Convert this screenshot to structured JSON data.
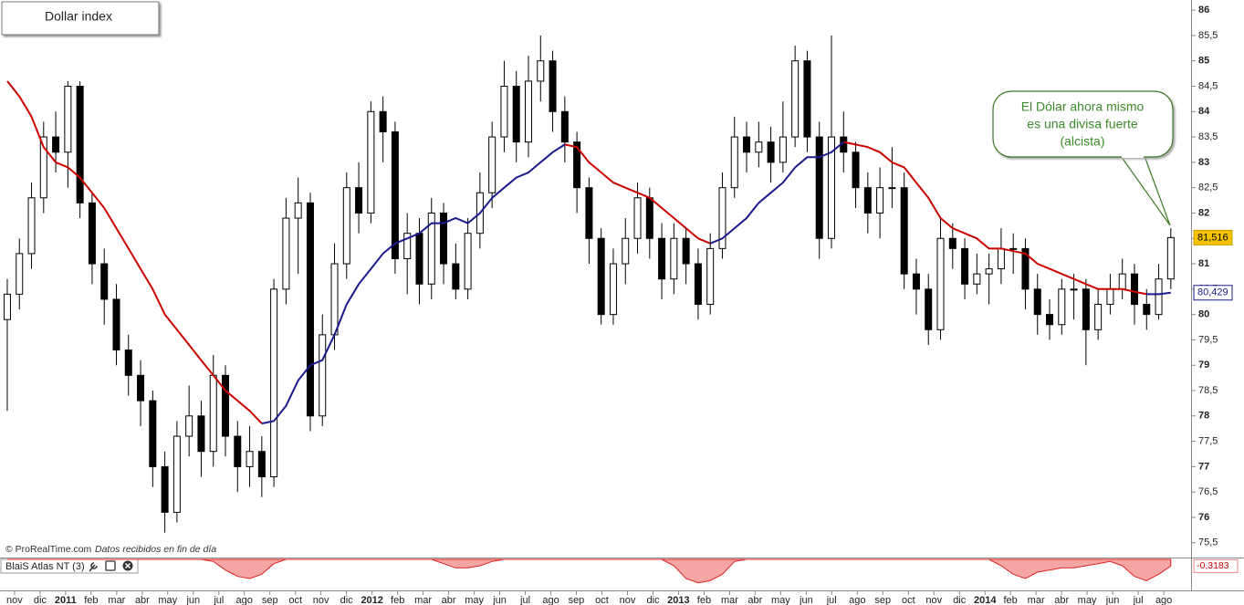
{
  "chart_data": {
    "type": "candlestick",
    "title": "Dollar index",
    "annotation": [
      "El Dólar ahora mismo",
      "es una divisa fuerte",
      "(alcista)"
    ],
    "source": "© ProRealTime.com",
    "source_note": "Datos recibidos en fin de día",
    "up_color": "#ffffff",
    "down_color": "#000000",
    "xlim": [
      -0.6,
      97.67
    ],
    "ylim": [
      75.28,
      86.2
    ],
    "yticks": [
      {
        "value": 75.5,
        "label": "75,5"
      },
      76,
      {
        "value": 76.5,
        "label": "76,5"
      },
      77,
      {
        "value": 77.5,
        "label": "77,5"
      },
      78,
      {
        "value": 78.5,
        "label": "78,5"
      },
      79,
      {
        "value": 79.5,
        "label": "79,5"
      },
      80,
      {
        "value": 80.5,
        "label": "80,5"
      },
      81,
      {
        "value": 81.5,
        "label": "81,5"
      },
      82,
      {
        "value": 82.5,
        "label": "82,5"
      },
      83,
      {
        "value": 83.5,
        "label": "83,5"
      },
      84,
      {
        "value": 84.5,
        "label": "84,5"
      },
      85,
      {
        "value": 85.5,
        "label": "85,5"
      },
      86
    ],
    "xticks": [
      {
        "value": 0.6,
        "label": "nov"
      },
      {
        "value": 2.71,
        "label": "dic"
      },
      {
        "value": 4.81,
        "label": "2011"
      },
      {
        "value": 6.92,
        "label": "feb"
      },
      {
        "value": 9.03,
        "label": "mar"
      },
      {
        "value": 11.14,
        "label": "abr"
      },
      {
        "value": 13.24,
        "label": "may"
      },
      {
        "value": 15.35,
        "label": "jun"
      },
      {
        "value": 17.46,
        "label": "jul"
      },
      {
        "value": 19.56,
        "label": "ago"
      },
      {
        "value": 21.67,
        "label": "sep"
      },
      {
        "value": 23.78,
        "label": "oct"
      },
      {
        "value": 25.88,
        "label": "nov"
      },
      {
        "value": 27.99,
        "label": "dic"
      },
      {
        "value": 30.1,
        "label": "2012"
      },
      {
        "value": 32.21,
        "label": "feb"
      },
      {
        "value": 34.31,
        "label": "mar"
      },
      {
        "value": 36.42,
        "label": "abr"
      },
      {
        "value": 38.53,
        "label": "may"
      },
      {
        "value": 40.63,
        "label": "jun"
      },
      {
        "value": 42.74,
        "label": "jul"
      },
      {
        "value": 44.85,
        "label": "ago"
      },
      {
        "value": 46.95,
        "label": "sep"
      },
      {
        "value": 49.06,
        "label": "oct"
      },
      {
        "value": 51.17,
        "label": "nov"
      },
      {
        "value": 53.28,
        "label": "dic"
      },
      {
        "value": 55.38,
        "label": "2013"
      },
      {
        "value": 57.49,
        "label": "feb"
      },
      {
        "value": 59.6,
        "label": "mar"
      },
      {
        "value": 61.7,
        "label": "abr"
      },
      {
        "value": 63.81,
        "label": "may"
      },
      {
        "value": 65.92,
        "label": "jun"
      },
      {
        "value": 68.02,
        "label": "jul"
      },
      {
        "value": 70.13,
        "label": "ago"
      },
      {
        "value": 72.24,
        "label": "sep"
      },
      {
        "value": 74.35,
        "label": "oct"
      },
      {
        "value": 76.45,
        "label": "nov"
      },
      {
        "value": 78.56,
        "label": "dic"
      },
      {
        "value": 80.67,
        "label": "2014"
      },
      {
        "value": 82.77,
        "label": "feb"
      },
      {
        "value": 84.88,
        "label": "mar"
      },
      {
        "value": 86.99,
        "label": "abr"
      },
      {
        "value": 89.09,
        "label": "may"
      },
      {
        "value": 91.2,
        "label": "jun"
      },
      {
        "value": 93.31,
        "label": "jul"
      },
      {
        "value": 95.42,
        "label": "ago"
      }
    ],
    "candles": {
      "open": [
        79.9,
        80.4,
        81.2,
        82.3,
        83.5,
        83.2,
        84.5,
        82.2,
        81.0,
        80.3,
        79.3,
        78.8,
        78.3,
        77.0,
        76.1,
        77.6,
        78.0,
        77.3,
        78.8,
        77.6,
        77.0,
        77.3,
        76.8,
        80.5,
        81.9,
        82.2,
        78.0,
        79.6,
        81.0,
        82.5,
        82.0,
        84.0,
        83.6,
        81.1,
        81.6,
        80.6,
        82.0,
        81.0,
        80.5,
        81.6,
        82.4,
        83.5,
        84.5,
        83.4,
        84.6,
        85.0,
        84.0,
        83.4,
        82.5,
        81.5,
        80.0,
        81.0,
        81.5,
        82.3,
        81.5,
        80.7,
        81.5,
        81.0,
        80.2,
        81.3,
        82.5,
        83.5,
        83.2,
        83.4,
        83.0,
        83.5,
        85.0,
        83.5,
        81.5,
        83.5,
        83.2,
        82.5,
        82.0,
        82.5,
        82.5,
        80.8,
        80.5,
        79.7,
        81.5,
        81.3,
        80.6,
        80.8,
        80.9,
        81.3,
        81.3,
        80.5,
        80.0,
        79.8,
        80.5,
        80.5,
        79.7,
        80.2,
        80.5,
        80.8,
        80.2,
        80.0,
        80.7
      ],
      "high": [
        80.7,
        81.5,
        82.6,
        83.8,
        84.0,
        84.6,
        84.6,
        82.4,
        81.3,
        80.6,
        79.6,
        79.1,
        78.5,
        77.3,
        77.9,
        78.6,
        78.3,
        79.2,
        79.0,
        77.9,
        77.8,
        77.6,
        80.7,
        82.3,
        82.7,
        82.4,
        80.0,
        81.4,
        82.8,
        83.0,
        84.2,
        84.3,
        83.8,
        82.0,
        81.9,
        82.3,
        82.2,
        81.4,
        81.9,
        82.8,
        83.8,
        85.0,
        84.8,
        85.1,
        85.5,
        85.2,
        84.3,
        83.6,
        82.7,
        81.7,
        81.3,
        81.9,
        82.6,
        82.5,
        81.8,
        81.8,
        81.7,
        81.3,
        81.6,
        82.8,
        83.9,
        83.8,
        83.8,
        83.7,
        84.2,
        85.3,
        85.2,
        83.8,
        85.5,
        84.0,
        83.4,
        82.8,
        82.9,
        83.3,
        82.8,
        81.1,
        80.8,
        81.9,
        81.8,
        81.5,
        81.2,
        81.2,
        81.7,
        81.6,
        81.5,
        80.8,
        80.3,
        80.7,
        80.8,
        80.7,
        80.5,
        80.8,
        81.1,
        81.0,
        80.5,
        81.0,
        81.7
      ],
      "low": [
        78.1,
        80.1,
        80.9,
        82.0,
        82.8,
        82.5,
        81.9,
        80.6,
        79.8,
        79.0,
        78.4,
        77.8,
        76.6,
        75.7,
        75.9,
        77.2,
        76.8,
        77.0,
        77.2,
        76.5,
        76.6,
        76.4,
        76.6,
        80.2,
        80.8,
        77.7,
        77.8,
        79.3,
        80.7,
        81.6,
        81.8,
        83.0,
        80.8,
        80.4,
        80.2,
        80.3,
        80.6,
        80.3,
        80.3,
        81.3,
        82.1,
        83.2,
        83.0,
        83.1,
        84.2,
        83.6,
        83.0,
        82.0,
        81.0,
        79.8,
        79.8,
        80.6,
        81.2,
        81.1,
        80.3,
        80.4,
        80.6,
        79.9,
        80.0,
        81.1,
        82.3,
        82.8,
        82.9,
        82.6,
        82.8,
        83.3,
        83.2,
        81.1,
        81.3,
        82.8,
        82.1,
        81.6,
        81.5,
        82.1,
        80.5,
        80.0,
        79.4,
        79.5,
        80.9,
        80.3,
        80.4,
        80.2,
        80.6,
        80.8,
        80.1,
        79.6,
        79.5,
        79.6,
        79.9,
        79.0,
        79.5,
        80.0,
        80.3,
        79.8,
        79.7,
        79.9,
        80.5
      ],
      "close": [
        80.4,
        81.2,
        82.3,
        83.5,
        83.2,
        84.5,
        82.2,
        81.0,
        80.3,
        79.3,
        78.8,
        78.3,
        77.0,
        76.1,
        77.6,
        78.0,
        77.3,
        78.8,
        77.6,
        77.0,
        77.3,
        76.8,
        80.5,
        81.9,
        82.2,
        78.0,
        79.6,
        81.0,
        82.5,
        82.0,
        84.0,
        83.6,
        81.1,
        81.6,
        80.6,
        82.0,
        81.0,
        80.5,
        81.6,
        82.4,
        83.5,
        84.5,
        83.4,
        84.6,
        85.0,
        84.0,
        83.4,
        82.5,
        81.5,
        80.0,
        81.0,
        81.5,
        82.3,
        81.5,
        80.7,
        81.5,
        81.0,
        80.2,
        81.3,
        82.5,
        83.5,
        83.2,
        83.4,
        83.0,
        83.5,
        85.0,
        83.5,
        81.5,
        83.5,
        83.2,
        82.5,
        82.0,
        82.5,
        82.5,
        80.8,
        80.5,
        79.7,
        81.5,
        81.3,
        80.6,
        80.8,
        80.9,
        81.3,
        81.3,
        80.5,
        80.0,
        79.8,
        80.5,
        80.5,
        79.7,
        80.2,
        80.5,
        80.8,
        80.2,
        80.0,
        80.7,
        81.516
      ]
    },
    "series": [
      {
        "color": "#cc0000",
        "values": [
          84.6,
          84.3,
          83.9,
          83.3,
          83.0,
          82.9,
          82.7,
          82.4,
          82.1,
          81.7,
          81.3,
          80.9,
          80.5,
          80.0,
          79.7,
          79.4,
          79.1,
          78.8,
          78.5,
          78.3,
          78.1,
          77.85,
          null,
          null,
          null,
          null,
          null,
          null,
          null,
          null,
          null,
          null,
          null,
          null,
          null,
          null,
          null,
          null,
          null,
          null,
          null,
          null,
          null,
          null,
          null,
          null,
          83.35,
          83.3,
          83.0,
          82.8,
          82.6,
          82.5,
          82.4,
          82.3,
          82.1,
          81.9,
          81.7,
          81.5,
          81.4,
          null,
          null,
          null,
          null,
          null,
          null,
          null,
          null,
          null,
          null,
          83.4,
          83.35,
          83.3,
          83.2,
          83.0,
          82.9,
          82.6,
          82.3,
          81.9,
          81.7,
          81.6,
          81.5,
          81.3,
          81.3,
          81.25,
          81.2,
          81.0,
          80.9,
          80.8,
          80.7,
          80.6,
          80.5,
          80.5,
          80.5,
          80.45,
          80.4,
          null,
          null
        ]
      },
      {
        "color": "#1a1a8c",
        "values": [
          null,
          null,
          null,
          null,
          null,
          null,
          null,
          null,
          null,
          null,
          null,
          null,
          null,
          null,
          null,
          null,
          null,
          null,
          null,
          null,
          null,
          77.85,
          77.9,
          78.2,
          78.7,
          79.0,
          79.1,
          79.6,
          80.2,
          80.6,
          80.9,
          81.2,
          81.4,
          81.5,
          81.6,
          81.8,
          81.8,
          81.9,
          81.8,
          82.0,
          82.3,
          82.5,
          82.7,
          82.8,
          83.0,
          83.2,
          83.35,
          null,
          null,
          null,
          null,
          null,
          null,
          null,
          null,
          null,
          null,
          null,
          81.4,
          81.5,
          81.7,
          81.9,
          82.2,
          82.4,
          82.6,
          82.9,
          83.1,
          83.1,
          83.2,
          83.4,
          null,
          null,
          null,
          null,
          null,
          null,
          null,
          null,
          null,
          null,
          null,
          null,
          null,
          null,
          null,
          null,
          null,
          null,
          null,
          null,
          null,
          null,
          null,
          null,
          80.4,
          80.4,
          80.429
        ]
      }
    ],
    "last_price": {
      "value": 81.516,
      "label": "81,516"
    },
    "ma_last": {
      "value": 80.429,
      "label": "80,429"
    },
    "indicator": {
      "name": "BlaiS Atlas NT (3)",
      "ylim": [
        -1.2,
        0
      ],
      "last": {
        "value": -0.3183,
        "label": "-0,3183"
      },
      "values": [
        0,
        0,
        0,
        0,
        0,
        0,
        0,
        0,
        0,
        0,
        0,
        0,
        0,
        0,
        0,
        0,
        0,
        -0.1,
        -0.5,
        -0.8,
        -0.9,
        -0.7,
        -0.2,
        0,
        0,
        0,
        0,
        0,
        0,
        0,
        0,
        0,
        0,
        0,
        0,
        0,
        -0.2,
        -0.4,
        -0.4,
        -0.3,
        -0.1,
        0,
        0,
        0,
        0,
        0,
        0,
        0,
        0,
        0,
        0,
        0,
        0,
        0,
        0,
        -0.3,
        -0.9,
        -1.1,
        -1.0,
        -0.7,
        -0.1,
        0,
        0,
        0,
        0,
        0,
        0,
        0,
        0,
        0,
        0,
        0,
        0,
        0,
        0,
        0,
        0,
        0,
        0,
        0,
        0,
        0,
        -0.3,
        -0.7,
        -0.9,
        -0.6,
        -0.5,
        -0.4,
        -0.4,
        -0.3,
        -0.2,
        -0.1,
        -0.3,
        -0.8,
        -1.0,
        -0.7,
        -0.3183
      ]
    }
  }
}
